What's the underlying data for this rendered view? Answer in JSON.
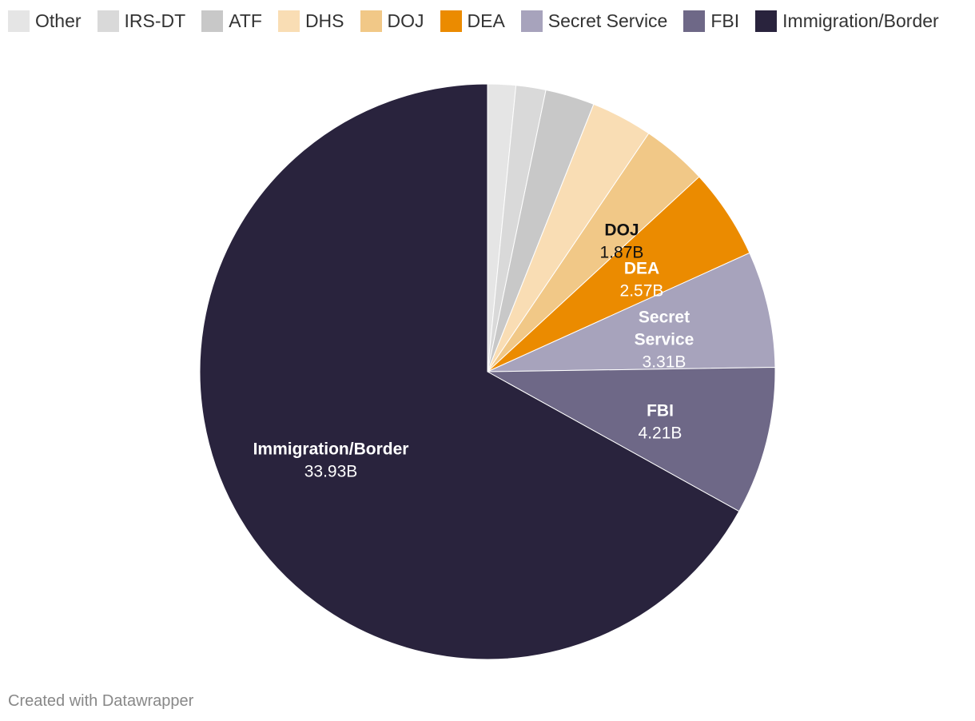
{
  "chart_data": {
    "type": "pie",
    "unit": "B",
    "slices": [
      {
        "name": "Other",
        "value": 0.8,
        "label": "",
        "color": "#e5e5e5"
      },
      {
        "name": "IRS-DT",
        "value": 0.85,
        "label": "",
        "color": "#d9d9d9"
      },
      {
        "name": "ATF",
        "value": 1.4,
        "label": "",
        "color": "#c8c8c8"
      },
      {
        "name": "DHS",
        "value": 1.75,
        "label": "",
        "color": "#f9ddb4"
      },
      {
        "name": "DOJ",
        "value": 1.87,
        "label": "1.87B",
        "color": "#f1c887"
      },
      {
        "name": "DEA",
        "value": 2.57,
        "label": "2.57B",
        "color": "#eb8b00"
      },
      {
        "name": "Secret Service",
        "value": 3.31,
        "label": "3.31B",
        "color": "#a7a3bc"
      },
      {
        "name": "FBI",
        "value": 4.21,
        "label": "4.21B",
        "color": "#6e6887"
      },
      {
        "name": "Immigration/Border",
        "value": 33.93,
        "label": "33.93B",
        "color": "#29233d"
      }
    ],
    "legend_position": "top"
  },
  "footer": {
    "credit": "Created with Datawrapper"
  }
}
